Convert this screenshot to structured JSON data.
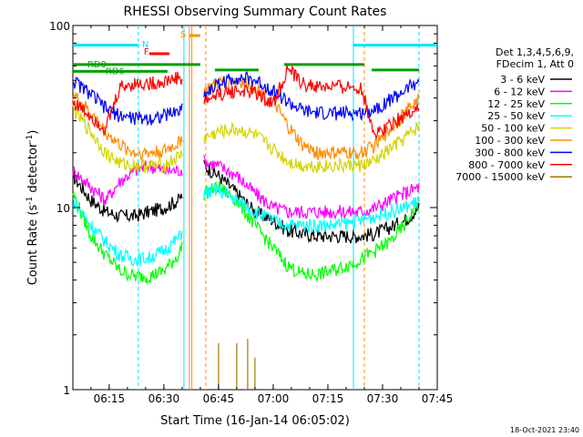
{
  "colors": {
    "axis": "#000000",
    "flag_cyan": "#00e5ff",
    "flag_red": "#ff0000",
    "flag_orange": "#ff8c00",
    "flag_green": "#00a000"
  },
  "chart_data": {
    "type": "line",
    "title": "RHESSI Observing Summary Count Rates",
    "xlabel": "Start Time (16-Jan-14 06:05:02)",
    "ylabel_prefix": "Count Rate (s",
    "ylabel_exp": "-1",
    "ylabel_suffix": " detector",
    "ylabel_exp2": "-1",
    "ylabel_close": ")",
    "timestamp": "18-Oct-2021 23:40",
    "y_scale": "log",
    "ylim": [
      1,
      100
    ],
    "xlim": [
      "06:05:02",
      "07:45:00"
    ],
    "x_ticks": [
      "06:15",
      "06:30",
      "06:45",
      "07:00",
      "07:15",
      "07:30",
      "07:45"
    ],
    "y_ticks": [
      "1",
      "10",
      "100"
    ],
    "legend_header": [
      "Det 1,3,4,5,6,9,",
      "FDecim 1, Att 0"
    ],
    "series": [
      {
        "name": "3 - 6 keV",
        "color": "#000000",
        "x": [
          "06:05",
          "06:10",
          "06:14",
          "06:18",
          "06:22",
          "06:26",
          "06:30",
          "06:34",
          "06:41",
          "06:45",
          "06:50",
          "06:55",
          "07:00",
          "07:04",
          "07:08",
          "07:12",
          "07:16",
          "07:20",
          "07:24",
          "07:28",
          "07:32",
          "07:36",
          "07:40"
        ],
        "y": [
          15,
          11,
          9.5,
          9,
          9,
          9.5,
          10,
          11,
          17,
          15,
          12,
          9.5,
          8.5,
          7.5,
          7.2,
          7,
          7,
          7,
          7,
          7.2,
          7.8,
          8.5,
          10
        ]
      },
      {
        "name": "6 - 12 keV",
        "color": "#ff00ff",
        "x": [
          "06:05",
          "06:10",
          "06:14",
          "06:18",
          "06:22",
          "06:26",
          "06:30",
          "06:34",
          "06:41",
          "06:45",
          "06:50",
          "06:55",
          "07:00",
          "07:04",
          "07:08",
          "07:12",
          "07:16",
          "07:20",
          "07:24",
          "07:28",
          "07:32",
          "07:36",
          "07:40"
        ],
        "y": [
          16,
          13,
          11,
          14,
          16,
          17,
          16,
          16,
          18,
          17,
          15,
          12,
          10,
          9.5,
          9.5,
          9.5,
          9.5,
          9.5,
          9.5,
          10,
          11,
          12,
          13
        ]
      },
      {
        "name": "12 - 25 keV",
        "color": "#00ff00",
        "x": [
          "06:05",
          "06:10",
          "06:14",
          "06:18",
          "06:22",
          "06:26",
          "06:30",
          "06:34",
          "06:41",
          "06:45",
          "06:50",
          "06:55",
          "07:00",
          "07:04",
          "07:08",
          "07:12",
          "07:16",
          "07:20",
          "07:24",
          "07:28",
          "07:32",
          "07:36",
          "07:40"
        ],
        "y": [
          12,
          7,
          5.5,
          4.5,
          4.2,
          4.2,
          4.5,
          5.5,
          12,
          13,
          11,
          8,
          6,
          4.8,
          4.3,
          4.3,
          4.5,
          4.8,
          5.2,
          5.8,
          6.5,
          8,
          11
        ]
      },
      {
        "name": "25 - 50 keV",
        "color": "#00ffff",
        "x": [
          "06:05",
          "06:10",
          "06:14",
          "06:18",
          "06:22",
          "06:26",
          "06:30",
          "06:34",
          "06:41",
          "06:45",
          "06:50",
          "06:55",
          "07:00",
          "07:04",
          "07:08",
          "07:12",
          "07:16",
          "07:20",
          "07:24",
          "07:28",
          "07:32",
          "07:36",
          "07:40"
        ],
        "y": [
          11,
          8,
          6.5,
          5.5,
          5.2,
          5.3,
          5.8,
          6.8,
          12,
          12.5,
          11,
          9.5,
          8.5,
          8,
          8,
          8,
          8,
          8.2,
          8.5,
          9,
          9.5,
          10,
          11
        ]
      },
      {
        "name": "50 - 100 keV",
        "color": "#d4d400",
        "x": [
          "06:05",
          "06:10",
          "06:14",
          "06:18",
          "06:22",
          "06:26",
          "06:30",
          "06:34",
          "06:41",
          "06:45",
          "06:50",
          "06:55",
          "07:00",
          "07:04",
          "07:08",
          "07:12",
          "07:16",
          "07:20",
          "07:24",
          "07:28",
          "07:32",
          "07:36",
          "07:40"
        ],
        "y": [
          35,
          26,
          20,
          17.5,
          17,
          17,
          17,
          19,
          24,
          26,
          27,
          25,
          21,
          18,
          17,
          17,
          17,
          17,
          17,
          18,
          21,
          24,
          28
        ]
      },
      {
        "name": "100 - 300 keV",
        "color": "#ff8c00",
        "x": [
          "06:05",
          "06:10",
          "06:14",
          "06:18",
          "06:22",
          "06:26",
          "06:30",
          "06:34",
          "06:41",
          "06:45",
          "06:50",
          "06:55",
          "07:00",
          "07:04",
          "07:08",
          "07:12",
          "07:16",
          "07:20",
          "07:24",
          "07:28",
          "07:32",
          "07:36",
          "07:40"
        ],
        "y": [
          42,
          33,
          26,
          22,
          20,
          20,
          20.5,
          22.5,
          44,
          48,
          50,
          46,
          38,
          28,
          22,
          20,
          20,
          20,
          20,
          22,
          27,
          33,
          40
        ]
      },
      {
        "name": "300 - 800 keV",
        "color": "#0000ff",
        "x": [
          "06:05",
          "06:10",
          "06:14",
          "06:18",
          "06:22",
          "06:26",
          "06:30",
          "06:34",
          "06:41",
          "06:45",
          "06:50",
          "06:55",
          "07:00",
          "07:04",
          "07:08",
          "07:12",
          "07:16",
          "07:20",
          "07:24",
          "07:28",
          "07:32",
          "07:36",
          "07:40"
        ],
        "y": [
          50,
          42,
          35,
          32,
          31,
          31,
          32,
          34,
          42,
          48,
          52,
          50,
          44,
          38,
          34,
          33,
          33,
          33,
          33,
          35,
          39,
          44,
          50
        ]
      },
      {
        "name": "800 - 7000 keV",
        "color": "#ff0000",
        "x": [
          "06:05",
          "06:10",
          "06:14",
          "06:18",
          "06:22",
          "06:26",
          "06:30",
          "06:34",
          "06:41",
          "06:45",
          "06:50",
          "06:55",
          "07:00",
          "07:04",
          "07:08",
          "07:12",
          "07:16",
          "07:20",
          "07:24",
          "07:28",
          "07:32",
          "07:36",
          "07:40"
        ],
        "y": [
          38,
          32,
          27,
          46,
          48,
          48,
          49,
          52,
          38,
          42,
          44,
          43,
          37,
          58,
          48,
          46,
          46,
          46,
          46,
          25,
          29,
          32,
          36
        ]
      },
      {
        "name": "7000 - 15000 keV",
        "color": "#a07800",
        "x": [
          "06:45",
          "06:50",
          "06:53",
          "06:55"
        ],
        "y": [
          1.8,
          1.8,
          1.9,
          1.5
        ]
      }
    ],
    "flags": [
      {
        "name": "N",
        "color": "#00e5ff"
      },
      {
        "name": "F",
        "color": "#ff0000"
      },
      {
        "name": "S",
        "color": "#ff8c00"
      },
      {
        "name": "RD0",
        "color": "#00a000"
      },
      {
        "name": "RD6",
        "color": "#00a000"
      }
    ]
  }
}
